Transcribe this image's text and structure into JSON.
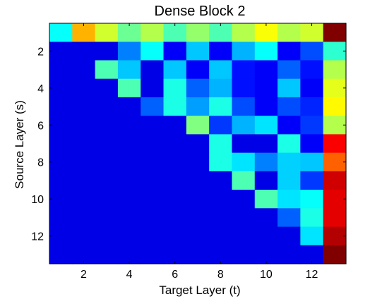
{
  "chart_data": {
    "type": "heatmap",
    "title": "Dense Block 2",
    "xlabel": "Target Layer (t)",
    "ylabel": "Source Layer (s)",
    "x_ticks": [
      2,
      4,
      6,
      8,
      10,
      12
    ],
    "y_ticks": [
      2,
      4,
      6,
      8,
      10,
      12
    ],
    "x_range": [
      1,
      13
    ],
    "y_range": [
      1,
      13
    ],
    "colormap": "jet",
    "value_range": [
      0,
      1
    ],
    "grid": false,
    "values": [
      [
        0.38,
        0.7,
        0.58,
        0.48,
        0.55,
        0.45,
        0.52,
        0.45,
        0.55,
        0.62,
        0.55,
        0.58,
        1.0
      ],
      [
        0.1,
        0.1,
        0.1,
        0.25,
        0.38,
        0.12,
        0.32,
        0.12,
        0.3,
        0.38,
        0.12,
        0.2,
        0.42
      ],
      [
        0.1,
        0.1,
        0.45,
        0.32,
        0.1,
        0.32,
        0.12,
        0.32,
        0.14,
        0.12,
        0.22,
        0.14,
        0.55
      ],
      [
        0.1,
        0.1,
        0.1,
        0.45,
        0.1,
        0.4,
        0.22,
        0.3,
        0.14,
        0.12,
        0.32,
        0.12,
        0.6
      ],
      [
        0.1,
        0.1,
        0.1,
        0.1,
        0.22,
        0.4,
        0.28,
        0.4,
        0.2,
        0.12,
        0.2,
        0.16,
        0.63
      ],
      [
        0.1,
        0.1,
        0.1,
        0.1,
        0.1,
        0.1,
        0.5,
        0.18,
        0.3,
        0.35,
        0.12,
        0.18,
        0.55
      ],
      [
        0.1,
        0.1,
        0.1,
        0.1,
        0.1,
        0.1,
        0.1,
        0.4,
        0.1,
        0.1,
        0.4,
        0.12,
        0.88
      ],
      [
        0.1,
        0.1,
        0.1,
        0.1,
        0.1,
        0.1,
        0.1,
        0.4,
        0.35,
        0.25,
        0.33,
        0.32,
        0.78
      ],
      [
        0.1,
        0.1,
        0.1,
        0.1,
        0.1,
        0.1,
        0.1,
        0.1,
        0.45,
        0.1,
        0.33,
        0.18,
        0.92
      ],
      [
        0.1,
        0.1,
        0.1,
        0.1,
        0.1,
        0.1,
        0.1,
        0.1,
        0.1,
        0.45,
        0.35,
        0.38,
        0.9
      ],
      [
        0.1,
        0.1,
        0.1,
        0.1,
        0.1,
        0.1,
        0.1,
        0.1,
        0.1,
        0.1,
        0.22,
        0.4,
        0.9
      ],
      [
        0.1,
        0.1,
        0.1,
        0.1,
        0.1,
        0.1,
        0.1,
        0.1,
        0.1,
        0.1,
        0.1,
        0.35,
        0.95
      ],
      [
        0.1,
        0.1,
        0.1,
        0.1,
        0.1,
        0.1,
        0.1,
        0.1,
        0.1,
        0.1,
        0.1,
        0.1,
        1.0
      ]
    ]
  }
}
